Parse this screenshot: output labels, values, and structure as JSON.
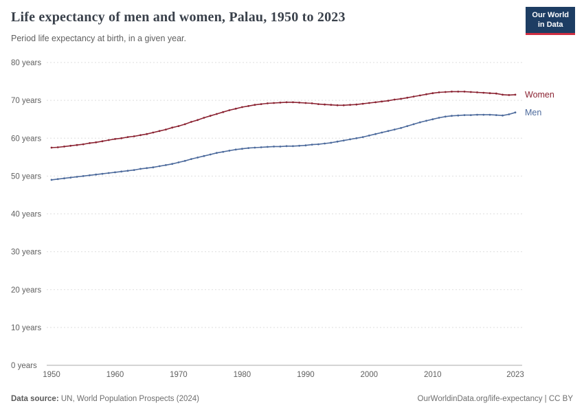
{
  "logo": {
    "line1": "Our World",
    "line2": "in Data"
  },
  "header": {
    "title": "Life expectancy of men and women, Palau, 1950 to 2023",
    "subtitle": "Period life expectancy at birth, in a given year."
  },
  "footer": {
    "source_label": "Data source:",
    "source_text": " UN, World Population Prospects (2024)",
    "right_text": "OurWorldinData.org/life-expectancy | CC BY"
  },
  "chart_data": {
    "type": "line",
    "title": "Life expectancy of men and women, Palau, 1950 to 2023",
    "subtitle": "Period life expectancy at birth, in a given year.",
    "xlabel": "",
    "ylabel": "",
    "ylim": [
      0,
      80
    ],
    "y_ticks": [
      0,
      10,
      20,
      30,
      40,
      50,
      60,
      70,
      80
    ],
    "y_tick_suffix": " years",
    "x_ticks": [
      1950,
      1960,
      1970,
      1980,
      1990,
      2000,
      2010,
      2023
    ],
    "grid": "horizontal-dashed",
    "legend_position": "end-of-line",
    "x": [
      1950,
      1951,
      1952,
      1953,
      1954,
      1955,
      1956,
      1957,
      1958,
      1959,
      1960,
      1961,
      1962,
      1963,
      1964,
      1965,
      1966,
      1967,
      1968,
      1969,
      1970,
      1971,
      1972,
      1973,
      1974,
      1975,
      1976,
      1977,
      1978,
      1979,
      1980,
      1981,
      1982,
      1983,
      1984,
      1985,
      1986,
      1987,
      1988,
      1989,
      1990,
      1991,
      1992,
      1993,
      1994,
      1995,
      1996,
      1997,
      1998,
      1999,
      2000,
      2001,
      2002,
      2003,
      2004,
      2005,
      2006,
      2007,
      2008,
      2009,
      2010,
      2011,
      2012,
      2013,
      2014,
      2015,
      2016,
      2017,
      2018,
      2019,
      2020,
      2021,
      2022,
      2023
    ],
    "series": [
      {
        "name": "Women",
        "color": "#8b2332",
        "values": [
          57.5,
          57.6,
          57.8,
          58.0,
          58.2,
          58.4,
          58.7,
          58.9,
          59.2,
          59.5,
          59.8,
          60.0,
          60.3,
          60.5,
          60.8,
          61.1,
          61.5,
          61.9,
          62.3,
          62.8,
          63.2,
          63.7,
          64.3,
          64.8,
          65.4,
          65.9,
          66.4,
          66.9,
          67.4,
          67.8,
          68.2,
          68.5,
          68.8,
          69.0,
          69.2,
          69.3,
          69.4,
          69.5,
          69.5,
          69.4,
          69.3,
          69.2,
          69.0,
          68.9,
          68.8,
          68.7,
          68.7,
          68.8,
          68.9,
          69.1,
          69.3,
          69.5,
          69.7,
          69.9,
          70.2,
          70.4,
          70.7,
          71.0,
          71.3,
          71.6,
          71.9,
          72.1,
          72.2,
          72.3,
          72.3,
          72.3,
          72.2,
          72.1,
          72.0,
          71.9,
          71.8,
          71.5,
          71.4,
          71.5
        ]
      },
      {
        "name": "Men",
        "color": "#4c6a9c",
        "values": [
          49.0,
          49.2,
          49.4,
          49.6,
          49.8,
          50.0,
          50.2,
          50.4,
          50.6,
          50.8,
          51.0,
          51.2,
          51.4,
          51.6,
          51.9,
          52.1,
          52.3,
          52.6,
          52.9,
          53.2,
          53.6,
          54.0,
          54.5,
          54.9,
          55.3,
          55.7,
          56.1,
          56.4,
          56.7,
          57.0,
          57.2,
          57.4,
          57.5,
          57.6,
          57.7,
          57.8,
          57.8,
          57.9,
          57.9,
          58.0,
          58.1,
          58.3,
          58.4,
          58.6,
          58.8,
          59.1,
          59.4,
          59.7,
          60.0,
          60.3,
          60.7,
          61.1,
          61.5,
          61.9,
          62.3,
          62.7,
          63.2,
          63.7,
          64.2,
          64.6,
          65.0,
          65.4,
          65.7,
          65.9,
          66.0,
          66.1,
          66.1,
          66.2,
          66.2,
          66.2,
          66.1,
          66.0,
          66.3,
          66.8
        ]
      }
    ]
  }
}
